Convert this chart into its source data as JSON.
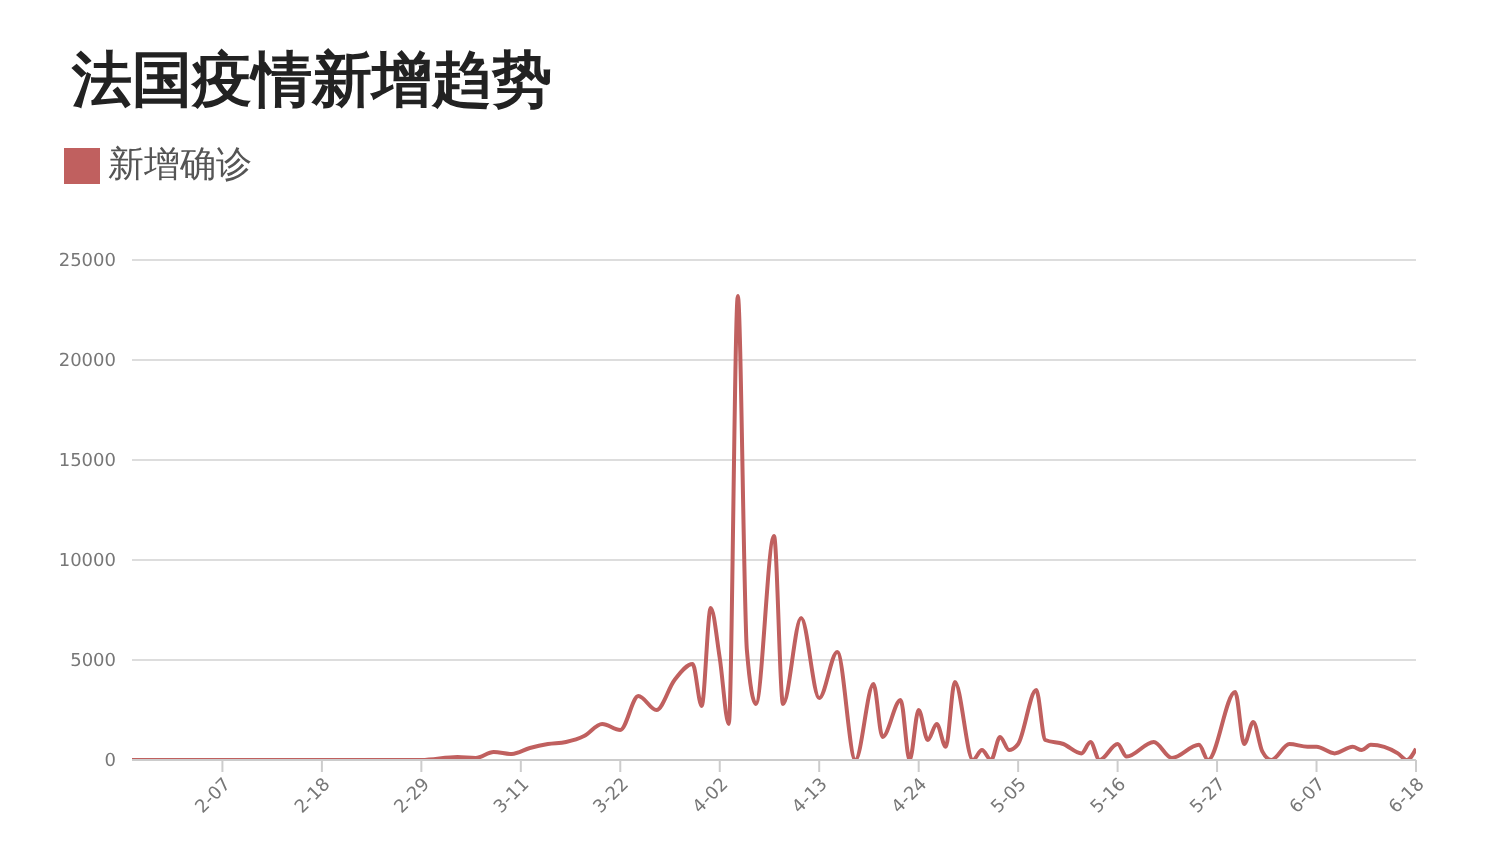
{
  "chart_data": {
    "type": "line",
    "title": "法国疫情新增趋势",
    "legend": "top left",
    "grid": "y",
    "marker": "none",
    "line_style": "solid",
    "x": [
      "--01-28",
      "--02-07",
      "--02-18",
      "--02-29",
      "--03-04",
      "--03-06",
      "--03-08",
      "--03-10",
      "--03-12",
      "--03-14",
      "--03-16",
      "--03-18",
      "--03-20",
      "--03-22",
      "--03-24",
      "--03-26",
      "--03-28",
      "--03-30",
      "--03-31",
      "--04-01",
      "--04-02",
      "--04-03",
      "--04-04",
      "--04-05",
      "--04-06",
      "--04-08",
      "--04-09",
      "--04-11",
      "--04-13",
      "--04-15",
      "--04-17",
      "--04-19",
      "--04-20",
      "--04-22",
      "--04-23",
      "--04-24",
      "--04-25",
      "--04-26",
      "--04-27",
      "--04-28",
      "--04-30",
      "--05-01",
      "--05-02",
      "--05-03",
      "--05-04",
      "--05-05",
      "--05-07",
      "--05-08",
      "--05-10",
      "--05-12",
      "--05-13",
      "--05-14",
      "--05-16",
      "--05-17",
      "--05-20",
      "--05-22",
      "--05-25",
      "--05-26",
      "--05-29",
      "--05-30",
      "--05-31",
      "--06-01",
      "--06-02",
      "--06-04",
      "--06-06",
      "--06-07",
      "--06-09",
      "--06-11",
      "--06-12",
      "--06-13",
      "--06-16",
      "--06-17",
      "--06-18"
    ],
    "series": [
      {
        "name": "新增确诊",
        "color": "#c0605f",
        "values": [
          0,
          0,
          0,
          0,
          150,
          100,
          400,
          300,
          600,
          800,
          900,
          1200,
          1800,
          1500,
          3200,
          2500,
          4000,
          4800,
          2700,
          7600,
          5100,
          1800,
          23200,
          5500,
          2800,
          11200,
          2800,
          7100,
          3100,
          5400,
          0,
          3800,
          1150,
          3000,
          0,
          2500,
          1000,
          1800,
          660,
          3900,
          0,
          500,
          0,
          1150,
          500,
          800,
          3500,
          1000,
          800,
          330,
          900,
          0,
          800,
          170,
          900,
          100,
          760,
          0,
          3400,
          800,
          1900,
          430,
          0,
          800,
          660,
          660,
          330,
          660,
          500,
          760,
          330,
          0,
          560
        ]
      }
    ],
    "xlim": [
      "--01-28",
      "--06-18"
    ],
    "xticks": [
      {
        "value": "--02-07",
        "label": "2-07"
      },
      {
        "value": "--02-18",
        "label": "2-18"
      },
      {
        "value": "--02-29",
        "label": "2-29"
      },
      {
        "value": "--03-11",
        "label": "3-11"
      },
      {
        "value": "--03-22",
        "label": "3-22"
      },
      {
        "value": "--04-02",
        "label": "4-02"
      },
      {
        "value": "--04-13",
        "label": "4-13"
      },
      {
        "value": "--04-24",
        "label": "4-24"
      },
      {
        "value": "--05-05",
        "label": "5-05"
      },
      {
        "value": "--05-16",
        "label": "5-16"
      },
      {
        "value": "--05-27",
        "label": "5-27"
      },
      {
        "value": "--06-07",
        "label": "6-07"
      },
      {
        "value": "--06-18",
        "label": "6-18"
      }
    ],
    "ylim": [
      0,
      25000
    ],
    "yticks": [
      0,
      5000,
      10000,
      15000,
      20000,
      25000
    ]
  }
}
